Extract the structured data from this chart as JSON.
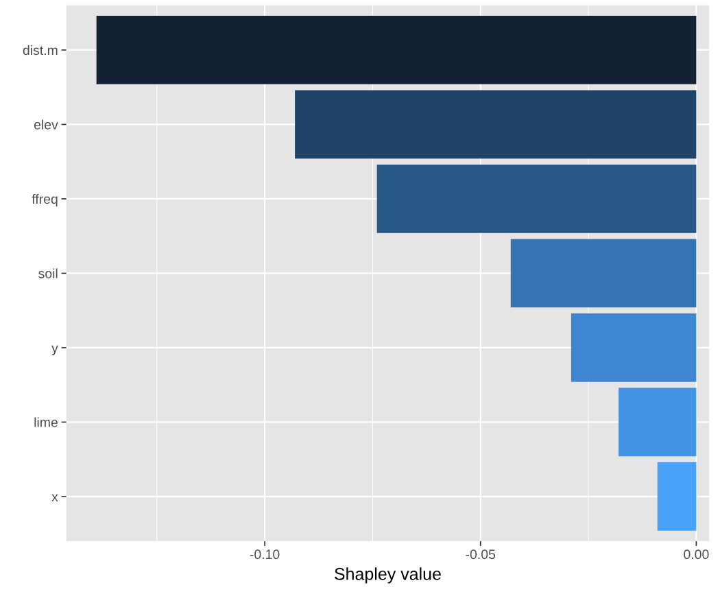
{
  "chart_data": {
    "type": "bar",
    "orientation": "horizontal",
    "xlabel": "Shapley value",
    "categories": [
      "dist.m",
      "elev",
      "ffreq",
      "soil",
      "y",
      "lime",
      "x"
    ],
    "values": [
      -0.139,
      -0.093,
      -0.074,
      -0.043,
      -0.029,
      -0.018,
      -0.009
    ],
    "colors": [
      "#132132",
      "#204368",
      "#285886",
      "#3574b2",
      "#3e86d0",
      "#4394e2",
      "#4aa3f8"
    ],
    "xlim": [
      -0.146,
      0.003
    ],
    "xticks": [
      {
        "value": -0.125,
        "label": null
      },
      {
        "value": -0.1,
        "label": "-0.10"
      },
      {
        "value": -0.075,
        "label": null
      },
      {
        "value": -0.05,
        "label": "-0.05"
      },
      {
        "value": -0.025,
        "label": null
      },
      {
        "value": 0,
        "label": "0.00"
      }
    ],
    "grid": true,
    "legend": false
  }
}
